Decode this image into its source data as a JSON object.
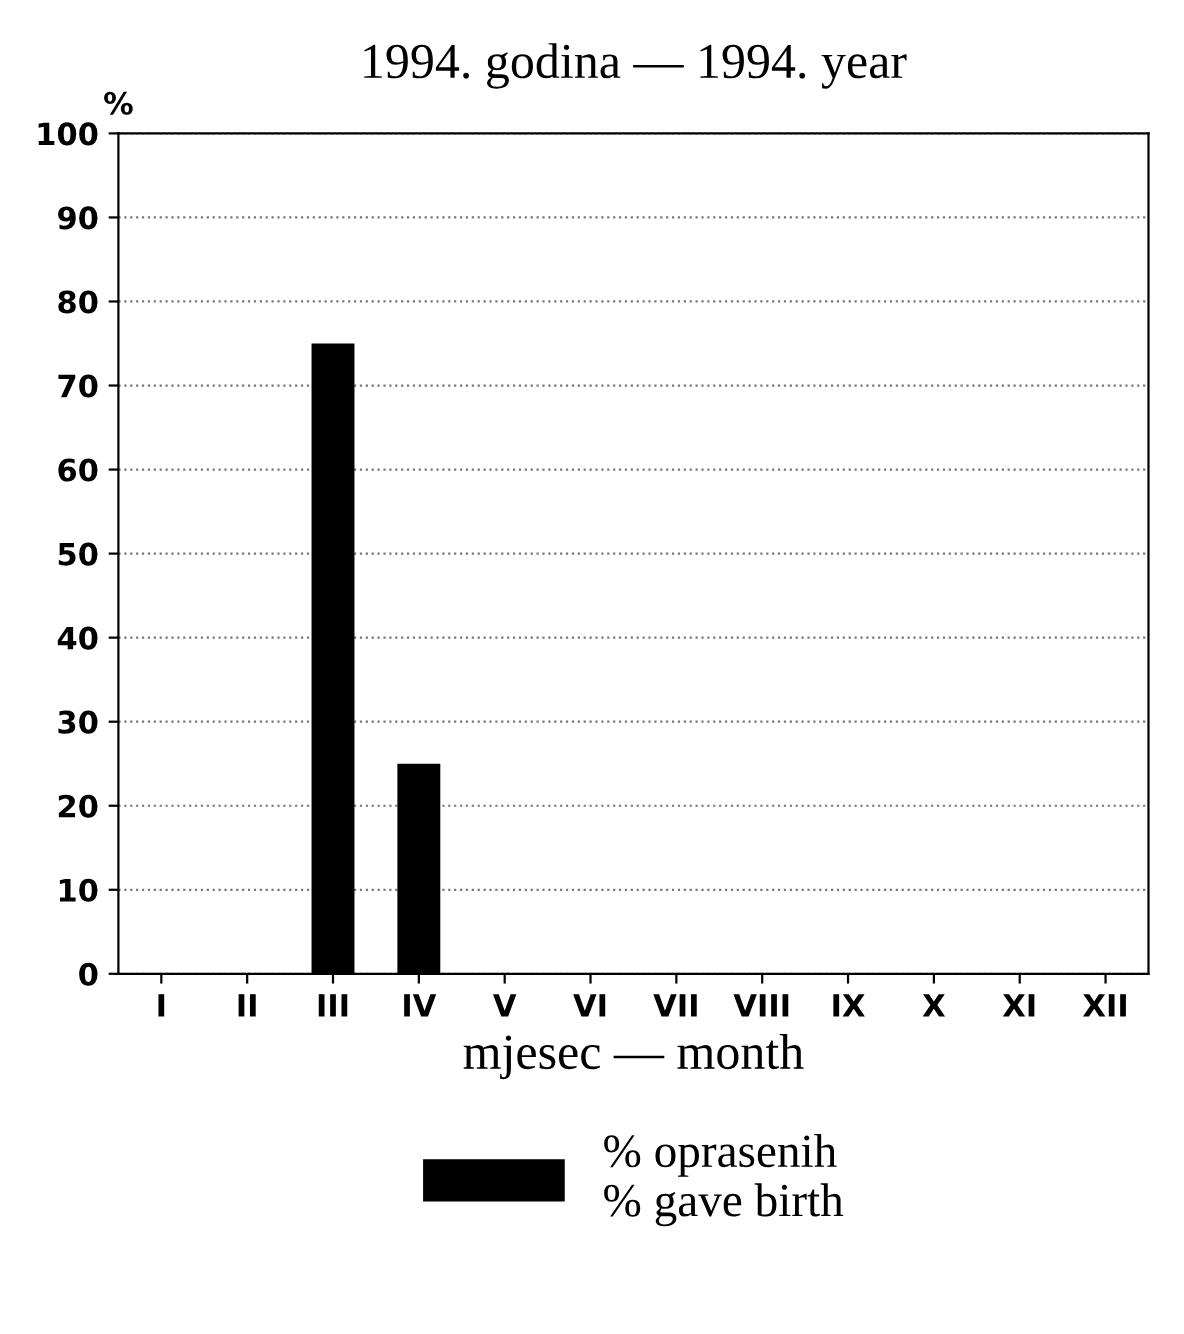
{
  "chart_data": {
    "type": "bar",
    "title": "1994. godina — 1994. year",
    "xlabel": "mjesec — month",
    "ylabel": "%",
    "categories": [
      "I",
      "II",
      "III",
      "IV",
      "V",
      "VI",
      "VII",
      "VIII",
      "IX",
      "X",
      "XI",
      "XII"
    ],
    "series": [
      {
        "name": "% oprasenih\n% gave birth",
        "color": "#000000",
        "values": [
          0,
          0,
          75,
          25,
          0,
          0,
          0,
          0,
          0,
          0,
          0,
          0
        ]
      }
    ],
    "ylim": [
      0,
      100
    ],
    "yticks": [
      0,
      10,
      20,
      30,
      40,
      50,
      60,
      70,
      80,
      90,
      100
    ],
    "grid": "y",
    "legend": "bottom"
  }
}
